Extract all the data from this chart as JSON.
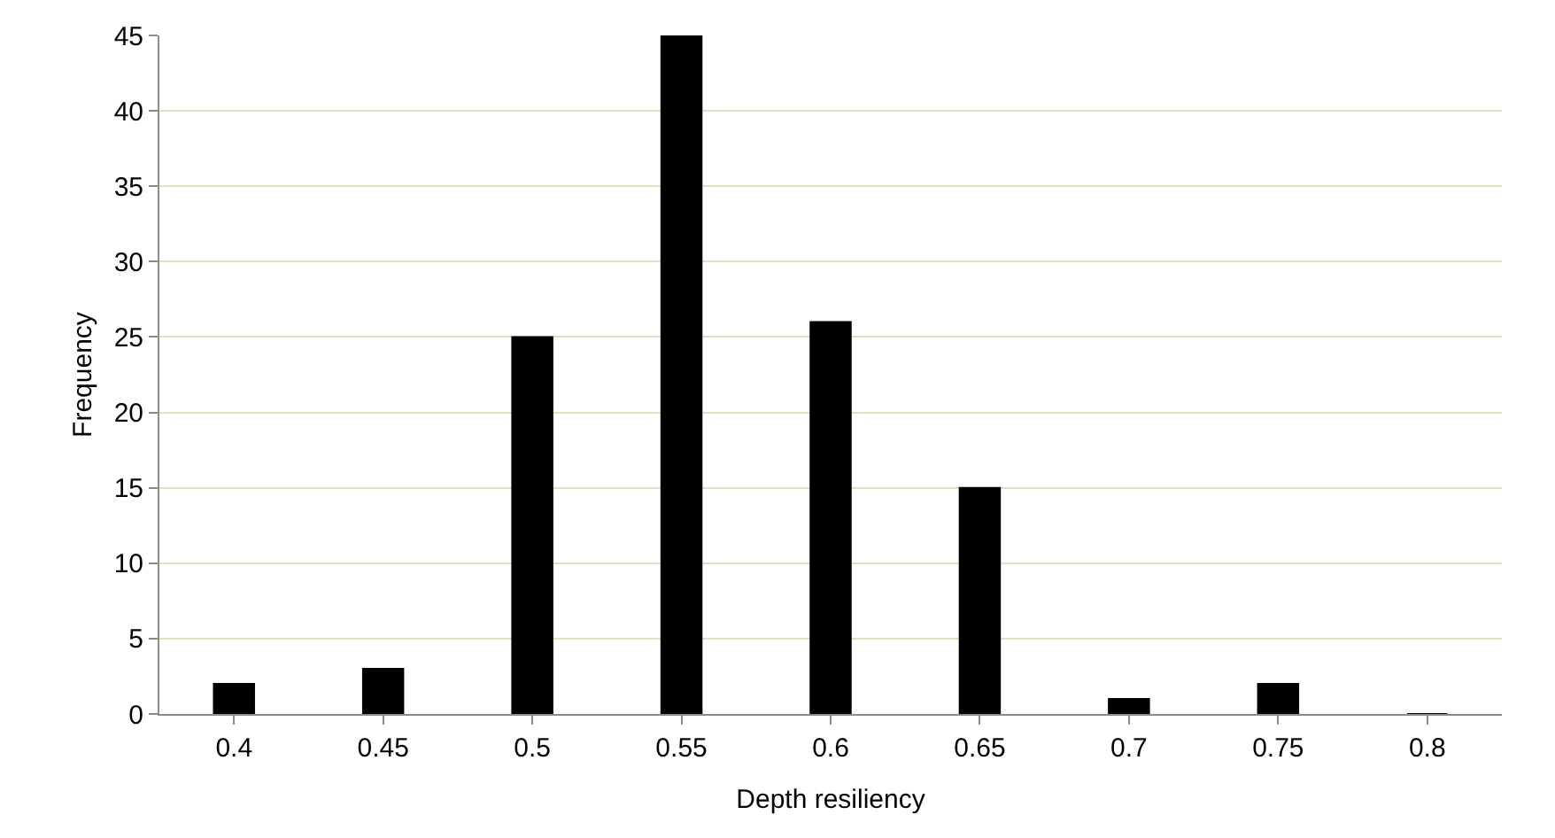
{
  "chart_data": {
    "type": "bar",
    "xlabel": "Depth resiliency",
    "ylabel": "Frequency",
    "categories": [
      "0.4",
      "0.45",
      "0.5",
      "0.55",
      "0.6",
      "0.65",
      "0.7",
      "0.75",
      "0.8"
    ],
    "values": [
      2,
      3,
      25,
      45,
      26,
      15,
      1,
      2,
      0
    ],
    "color": "#000000",
    "ylim": [
      0,
      45
    ],
    "yticks": [
      0,
      5,
      10,
      15,
      20,
      25,
      30,
      35,
      40,
      45
    ],
    "grid": "y"
  }
}
